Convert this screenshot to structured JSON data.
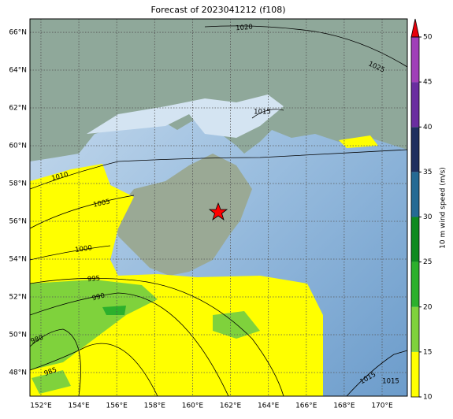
{
  "title": "Forecast of 2023041212 (f108)",
  "map": {
    "xlim": [
      151.42,
      171.33
    ],
    "ylim": [
      46.75,
      66.71
    ],
    "xticks": [
      {
        "value": 152,
        "label": "152°E"
      },
      {
        "value": 154,
        "label": "154°E"
      },
      {
        "value": 156,
        "label": "156°E"
      },
      {
        "value": 158,
        "label": "158°E"
      },
      {
        "value": 160,
        "label": "160°E"
      },
      {
        "value": 162,
        "label": "162°E"
      },
      {
        "value": 164,
        "label": "164°E"
      },
      {
        "value": 166,
        "label": "166°E"
      },
      {
        "value": 168,
        "label": "168°E"
      },
      {
        "value": 170,
        "label": "170°E"
      }
    ],
    "yticks": [
      {
        "value": 48,
        "label": "48°N"
      },
      {
        "value": 50,
        "label": "50°N"
      },
      {
        "value": 52,
        "label": "52°N"
      },
      {
        "value": 54,
        "label": "54°N"
      },
      {
        "value": 56,
        "label": "56°N"
      },
      {
        "value": 58,
        "label": "58°N"
      },
      {
        "value": 60,
        "label": "60°N"
      },
      {
        "value": 62,
        "label": "62°N"
      },
      {
        "value": 64,
        "label": "64°N"
      },
      {
        "value": 66,
        "label": "66°N"
      }
    ]
  },
  "isobars": [
    1020,
    1025,
    1015,
    1010,
    1005,
    1000,
    995,
    990,
    980,
    985,
    1015,
    1015
  ],
  "colorbar": {
    "label": "10 m wind speed (m/s)",
    "range": [
      10,
      50
    ],
    "ticks": [
      10,
      15,
      20,
      25,
      30,
      35,
      40,
      45,
      50
    ],
    "colors": [
      "#ffff00",
      "#7fd23c",
      "#2cb02c",
      "#0e8a1e",
      "#256a94",
      "#1e2f5f",
      "#6a2ea0",
      "#a040b8"
    ],
    "extend_color": "#e8000b"
  }
}
